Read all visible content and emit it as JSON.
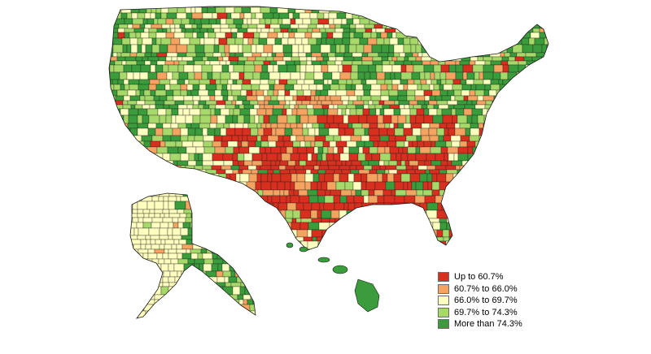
{
  "legend": {
    "items": [
      {
        "label": "Up to 60.7%",
        "color": "#d7301f"
      },
      {
        "label": "60.7% to 66.0%",
        "color": "#f4a460"
      },
      {
        "label": "66.0% to 69.7%",
        "color": "#ffffbf"
      },
      {
        "label": "69.7% to 74.3%",
        "color": "#a6d96a"
      },
      {
        "label": "More than 74.3%",
        "color": "#3a9c3a"
      }
    ]
  },
  "map": {
    "regions": [
      "contiguous-us",
      "alaska",
      "hawaii"
    ],
    "border_color": "#1a1a1a"
  }
}
